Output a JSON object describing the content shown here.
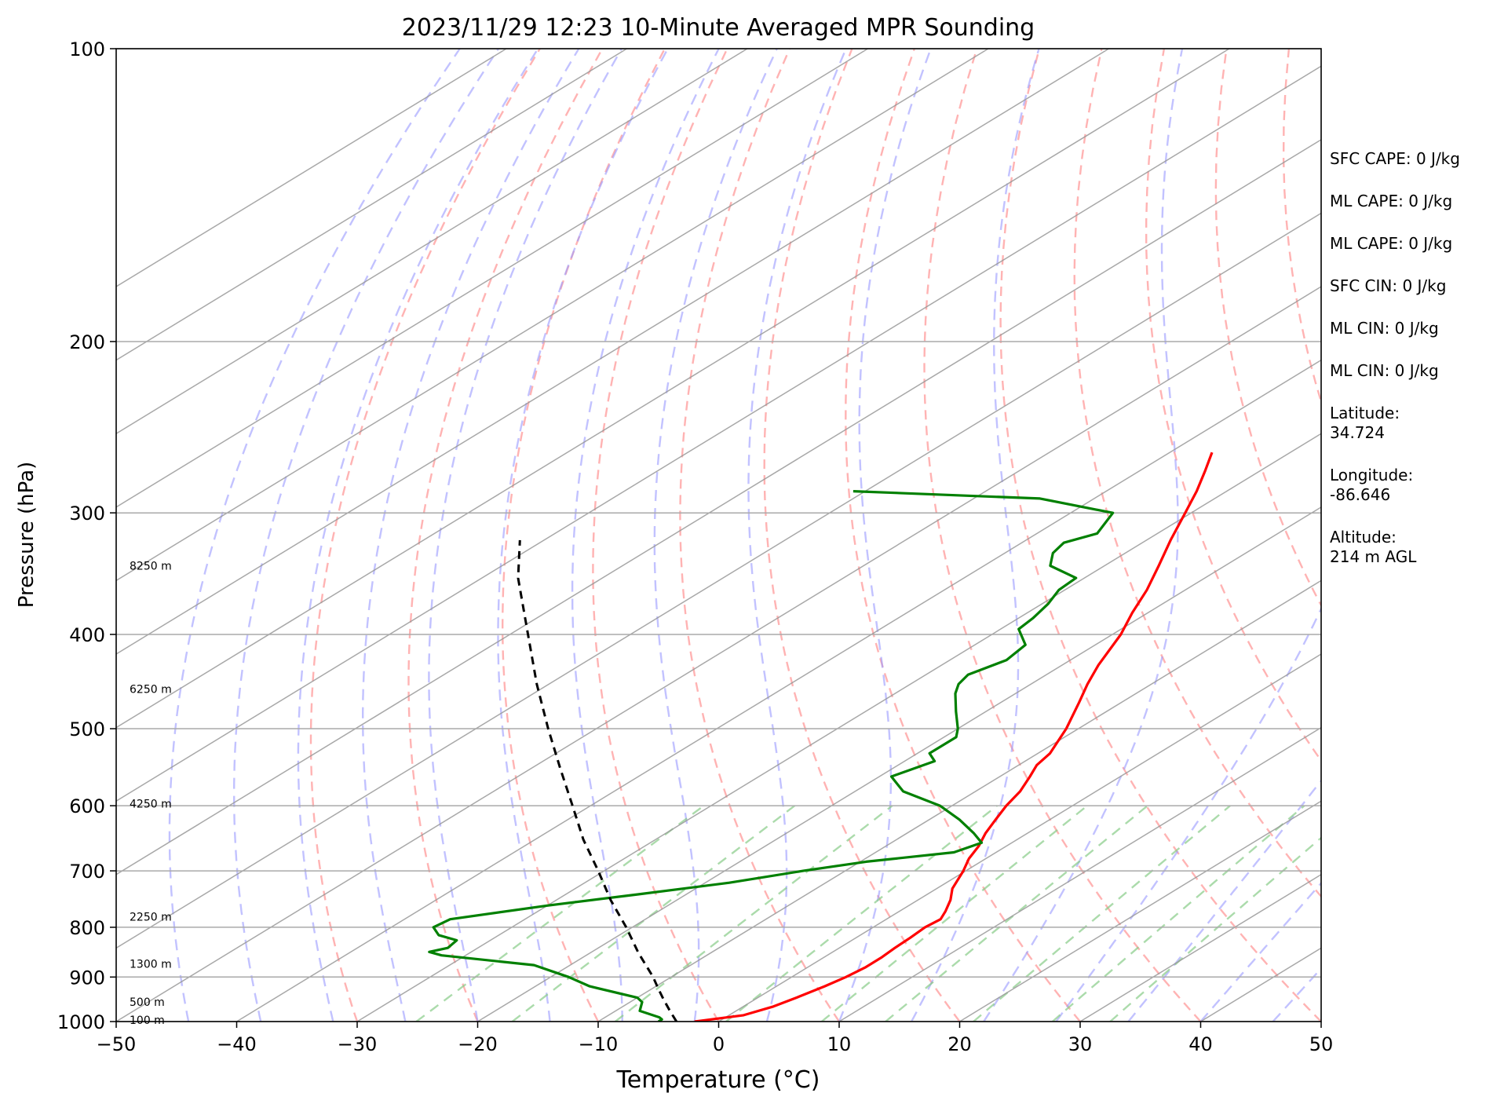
{
  "chart_data": {
    "type": "line",
    "title": "2023/11/29 12:23 10-Minute Averaged MPR Sounding",
    "xlabel": "Temperature (°C)",
    "ylabel": "Pressure (hPa)",
    "xlim": [
      -50,
      50
    ],
    "ylim": [
      1000,
      100
    ],
    "y_scale": "log",
    "skew": "skew-T log-P",
    "grid": true,
    "x_ticks": [
      -50,
      -40,
      -30,
      -20,
      -10,
      0,
      10,
      20,
      30,
      40,
      50
    ],
    "x_tick_labels": [
      "−50",
      "−40",
      "−30",
      "−20",
      "−10",
      "0",
      "10",
      "20",
      "30",
      "40",
      "50"
    ],
    "y_ticks": [
      1000,
      900,
      800,
      700,
      600,
      500,
      400,
      300,
      200,
      100
    ],
    "y_tick_labels": [
      "1000",
      "900",
      "800",
      "700",
      "600",
      "500",
      "400",
      "300",
      "200",
      "100"
    ],
    "colors": {
      "temperature": "#ff0000",
      "dewpoint": "#008000",
      "parcel": "#000000",
      "dry_adiabats": "#ff9999",
      "moist_adiabats": "#9999ff",
      "mixing_ratio": "#88cc88",
      "isotherms": "#999999"
    },
    "series": [
      {
        "key": "temperature",
        "points": [
          {
            "p": 1000,
            "t": -2.0
          },
          {
            "p": 985,
            "t": 1.2
          },
          {
            "p": 965,
            "t": 2.5
          },
          {
            "p": 945,
            "t": 3.2
          },
          {
            "p": 920,
            "t": 4.0
          },
          {
            "p": 900,
            "t": 4.5
          },
          {
            "p": 880,
            "t": 4.8
          },
          {
            "p": 860,
            "t": 4.8
          },
          {
            "p": 840,
            "t": 4.6
          },
          {
            "p": 820,
            "t": 4.5
          },
          {
            "p": 800,
            "t": 4.3
          },
          {
            "p": 785,
            "t": 4.5
          },
          {
            "p": 770,
            "t": 3.8
          },
          {
            "p": 750,
            "t": 2.7
          },
          {
            "p": 730,
            "t": 1.3
          },
          {
            "p": 700,
            "t": -0.2
          },
          {
            "p": 680,
            "t": -1.4
          },
          {
            "p": 660,
            "t": -2.3
          },
          {
            "p": 640,
            "t": -3.5
          },
          {
            "p": 620,
            "t": -4.5
          },
          {
            "p": 600,
            "t": -5.5
          },
          {
            "p": 580,
            "t": -6.3
          },
          {
            "p": 560,
            "t": -7.5
          },
          {
            "p": 545,
            "t": -8.5
          },
          {
            "p": 530,
            "t": -9.0
          },
          {
            "p": 500,
            "t": -11.0
          },
          {
            "p": 470,
            "t": -13.5
          },
          {
            "p": 450,
            "t": -15.3
          },
          {
            "p": 430,
            "t": -17.0
          },
          {
            "p": 400,
            "t": -19.3
          },
          {
            "p": 380,
            "t": -21.3
          },
          {
            "p": 360,
            "t": -23.2
          },
          {
            "p": 340,
            "t": -25.5
          },
          {
            "p": 320,
            "t": -28.0
          },
          {
            "p": 300,
            "t": -30.5
          },
          {
            "p": 285,
            "t": -32.5
          },
          {
            "p": 272,
            "t": -34.5
          },
          {
            "p": 260,
            "t": -36.5
          }
        ]
      },
      {
        "key": "dewpoint",
        "points": [
          {
            "p": 1000,
            "t": -5.0
          },
          {
            "p": 995,
            "t": -5.0
          },
          {
            "p": 990,
            "t": -5.5
          },
          {
            "p": 975,
            "t": -8.0
          },
          {
            "p": 955,
            "t": -9.0
          },
          {
            "p": 945,
            "t": -10.0
          },
          {
            "p": 920,
            "t": -15.5
          },
          {
            "p": 900,
            "t": -18.5
          },
          {
            "p": 875,
            "t": -23.0
          },
          {
            "p": 855,
            "t": -32.0
          },
          {
            "p": 848,
            "t": -33.5
          },
          {
            "p": 840,
            "t": -32.5
          },
          {
            "p": 825,
            "t": -32.8
          },
          {
            "p": 815,
            "t": -35.0
          },
          {
            "p": 800,
            "t": -36.5
          },
          {
            "p": 785,
            "t": -36.2
          },
          {
            "p": 760,
            "t": -30.0
          },
          {
            "p": 740,
            "t": -24.0
          },
          {
            "p": 720,
            "t": -18.0
          },
          {
            "p": 700,
            "t": -13.5
          },
          {
            "p": 685,
            "t": -9.5
          },
          {
            "p": 670,
            "t": -3.5
          },
          {
            "p": 655,
            "t": -2.5
          },
          {
            "p": 640,
            "t": -4.5
          },
          {
            "p": 620,
            "t": -7.5
          },
          {
            "p": 600,
            "t": -11.0
          },
          {
            "p": 580,
            "t": -16.0
          },
          {
            "p": 560,
            "t": -19.0
          },
          {
            "p": 540,
            "t": -17.5
          },
          {
            "p": 530,
            "t": -19.0
          },
          {
            "p": 510,
            "t": -19.0
          },
          {
            "p": 500,
            "t": -20.0
          },
          {
            "p": 480,
            "t": -22.5
          },
          {
            "p": 460,
            "t": -25.0
          },
          {
            "p": 450,
            "t": -26.0
          },
          {
            "p": 440,
            "t": -26.5
          },
          {
            "p": 425,
            "t": -25.3
          },
          {
            "p": 410,
            "t": -25.8
          },
          {
            "p": 395,
            "t": -28.5
          },
          {
            "p": 385,
            "t": -28.8
          },
          {
            "p": 372,
            "t": -29.5
          },
          {
            "p": 360,
            "t": -30.5
          },
          {
            "p": 350,
            "t": -30.7
          },
          {
            "p": 340,
            "t": -34.5
          },
          {
            "p": 330,
            "t": -36.0
          },
          {
            "p": 322,
            "t": -36.5
          },
          {
            "p": 315,
            "t": -35.0
          },
          {
            "p": 300,
            "t": -36.5
          },
          {
            "p": 290,
            "t": -44.5
          },
          {
            "p": 285,
            "t": -61.0
          }
        ]
      },
      {
        "key": "parcel",
        "points": [
          {
            "p": 1000,
            "t": -3.5
          },
          {
            "p": 975,
            "t": -5.5
          },
          {
            "p": 950,
            "t": -7.5
          },
          {
            "p": 925,
            "t": -9.5
          },
          {
            "p": 900,
            "t": -11.5
          },
          {
            "p": 850,
            "t": -16.0
          },
          {
            "p": 800,
            "t": -20.5
          },
          {
            "p": 750,
            "t": -25.5
          },
          {
            "p": 700,
            "t": -30.5
          },
          {
            "p": 650,
            "t": -36.0
          },
          {
            "p": 600,
            "t": -41.5
          },
          {
            "p": 550,
            "t": -47.5
          },
          {
            "p": 500,
            "t": -54.0
          },
          {
            "p": 450,
            "t": -61.0
          },
          {
            "p": 400,
            "t": -68.5
          },
          {
            "p": 350,
            "t": -77.0
          },
          {
            "p": 320,
            "t": -82.0
          }
        ]
      }
    ],
    "height_labels": [
      {
        "p": 996,
        "label": "100 m"
      },
      {
        "p": 955,
        "label": "500 m"
      },
      {
        "p": 872,
        "label": "1300 m"
      },
      {
        "p": 780,
        "label": "2250 m"
      },
      {
        "p": 597,
        "label": "4250 m"
      },
      {
        "p": 455,
        "label": "6250 m"
      },
      {
        "p": 340,
        "label": "8250 m"
      }
    ],
    "annotations": [
      "SFC CAPE: 0 J/kg",
      "ML CAPE: 0 J/kg",
      "ML CAPE: 0 J/kg",
      "SFC CIN: 0 J/kg",
      "ML CIN: 0 J/kg",
      "ML CIN: 0 J/kg",
      "Latitude:\n34.724",
      "Longitude:\n-86.646",
      "Altitude:\n214 m AGL"
    ]
  }
}
